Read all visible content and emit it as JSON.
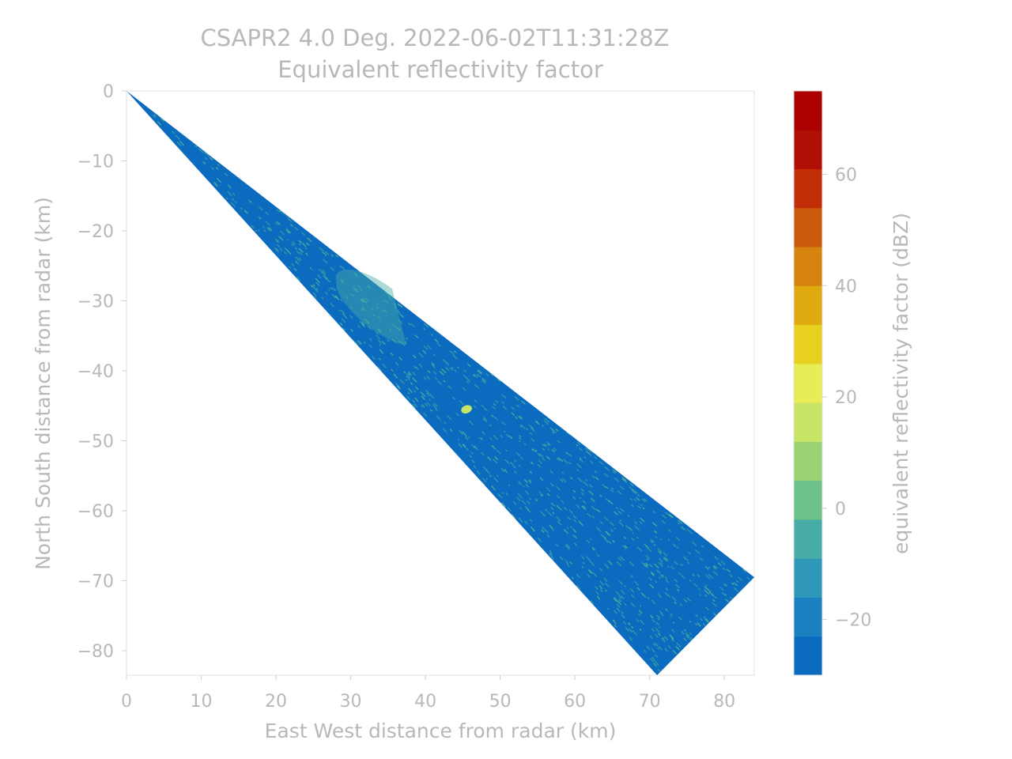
{
  "chart_data": {
    "type": "heatmap",
    "title": "CSAPR2 4.0 Deg. 2022-06-02T11:31:28Z",
    "subtitle": "Equivalent reflectivity factor",
    "xlabel": "East West distance from radar (km)",
    "ylabel": "North South distance from radar (km)",
    "xlim": [
      0,
      84
    ],
    "ylim": [
      -83.5,
      0
    ],
    "xticks": [
      0,
      10,
      20,
      30,
      40,
      50,
      60,
      70,
      80
    ],
    "yticks": [
      0,
      -10,
      -20,
      -30,
      -40,
      -50,
      -60,
      -70,
      -80
    ],
    "sector": {
      "origin": [
        0,
        0
      ],
      "edge1_end": [
        84,
        -69.5
      ],
      "edge2_end": [
        71,
        -83.5
      ]
    },
    "background_value_dbz": -28,
    "features": [
      {
        "description_value": "enhanced return region",
        "x": 34,
        "y": -31,
        "dbz": -8
      },
      {
        "description_value": "isolated strong echo",
        "x": 45.5,
        "y": -45.5,
        "dbz": 18
      }
    ],
    "colorbar": {
      "label": "equivalent reflectivity factor (dBZ)",
      "range": [
        -30,
        75
      ],
      "ticks": [
        60,
        40,
        20,
        0,
        -20
      ],
      "colors": [
        "#0b6bbf",
        "#1a80c0",
        "#2f97b8",
        "#47aca4",
        "#6dc28a",
        "#9ad374",
        "#c8e466",
        "#e8ec55",
        "#e8d020",
        "#e0ab10",
        "#d78310",
        "#cc5a0c",
        "#c22e08",
        "#b00f05",
        "#ad0000"
      ]
    }
  }
}
